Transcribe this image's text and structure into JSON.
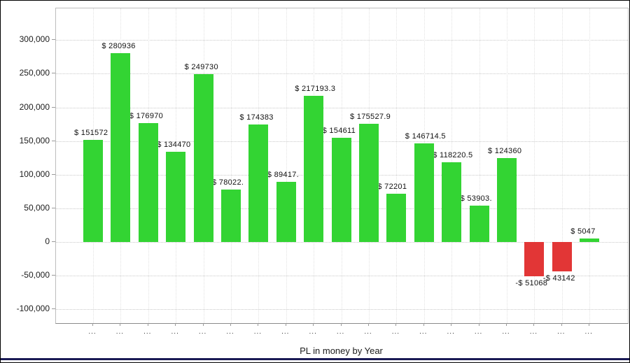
{
  "chart_data": {
    "type": "bar",
    "title": "",
    "xlabel": "PL in money by Year",
    "ylabel": "",
    "ylim": [
      -100000,
      300000
    ],
    "grid": "dotted horizontal and vertical",
    "legend_position": "none",
    "ytick_values": [
      300000,
      250000,
      200000,
      150000,
      100000,
      50000,
      0,
      -50000,
      -100000
    ],
    "ytick_labels": [
      "300,000",
      "250,000",
      "200,000",
      "150,000",
      "100,000",
      "50,000",
      "0",
      "-50,000",
      "-100,000"
    ],
    "categories": [
      "...",
      "...",
      "...",
      "...",
      "...",
      "...",
      "...",
      "...",
      "...",
      "...",
      "...",
      "...",
      "...",
      "...",
      "...",
      "...",
      "...",
      "...",
      "..."
    ],
    "bars": [
      {
        "value": 151572,
        "label": "$ 151572"
      },
      {
        "value": 280936,
        "label": "$ 280936"
      },
      {
        "value": 176970,
        "label": "$ 176970"
      },
      {
        "value": 134470,
        "label": "$ 134470"
      },
      {
        "value": 249730,
        "label": "$ 249730"
      },
      {
        "value": 78022,
        "label": "$ 78022."
      },
      {
        "value": 174383,
        "label": "$ 174383"
      },
      {
        "value": 89417,
        "label": "$ 89417."
      },
      {
        "value": 217193.3,
        "label": "$ 217193.3"
      },
      {
        "value": 154611,
        "label": "$ 154611"
      },
      {
        "value": 175527.9,
        "label": "$ 175527.9"
      },
      {
        "value": 72201,
        "label": "$ 72201"
      },
      {
        "value": 146714.5,
        "label": "$ 146714.5"
      },
      {
        "value": 118220.5,
        "label": "$ 118220.5"
      },
      {
        "value": 53903,
        "label": "$ 53903."
      },
      {
        "value": 124360,
        "label": "$ 124360"
      },
      {
        "value": -51068,
        "label": "-$ 51068"
      },
      {
        "value": -43142,
        "label": "-$ 43142"
      },
      {
        "value": 5047,
        "label": "$ 5047"
      }
    ],
    "colors": {
      "positive": "#33d433",
      "negative": "#e23636",
      "grid": "#c9c9c9",
      "axis": "#9a9a9a",
      "bottom_bar": "#1a1a55"
    }
  }
}
